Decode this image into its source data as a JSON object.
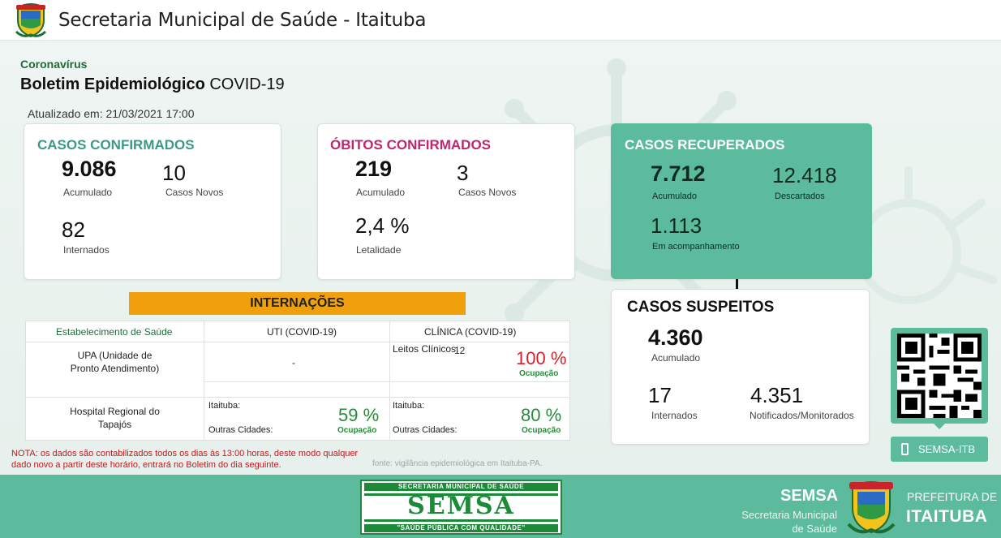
{
  "header": {
    "title": "Secretaria Municipal de Saúde - Itaituba",
    "crest_text": "ITAITUBA"
  },
  "bulletin": {
    "category": "Coronavírus",
    "title_bold": "Boletim Epidemiológico",
    "title_rest": " COVID-19",
    "updated": "Atualizado em: 21/03/2021 17:00"
  },
  "confirmed": {
    "title": "CASOS CONFIRMADOS",
    "accumulated": "9.086",
    "accumulated_label": "Acumulado",
    "new": "10",
    "new_label": "Casos Novos",
    "hospitalized": "82",
    "hospitalized_label": "Internados"
  },
  "deaths": {
    "title": "ÓBITOS CONFIRMADOS",
    "accumulated": "219",
    "accumulated_label": "Acumulado",
    "new": "3",
    "new_label": "Casos Novos",
    "lethality": "2,4 %",
    "lethality_label": "Letalidade"
  },
  "recovered": {
    "title": "CASOS RECUPERADOS",
    "accumulated": "7.712",
    "accumulated_label": "Acumulado",
    "discarded": "12.418",
    "discarded_label": "Descartados",
    "monitoring": "1.113",
    "monitoring_label": "Em acompanhamento"
  },
  "suspected": {
    "title": "CASOS SUSPEITOS",
    "accumulated": "4.360",
    "accumulated_label": "Acumulado",
    "hospitalized": "17",
    "hospitalized_label": "Internados",
    "notified": "4.351",
    "notified_label": "Notificados/Monitorados"
  },
  "internacoes": {
    "title": "INTERNAÇÕES",
    "columns": [
      "Estabelecimento de Saúde",
      "UTI (COVID-19)",
      "CLÍNICA (COVID-19)"
    ],
    "upa": {
      "name": "UPA (Unidade de\nPronto Atendimento)",
      "uti": "-",
      "clinic_label": "Leitos Clínicos:",
      "clinic_value": "12",
      "clinic_pct": "100 %",
      "clinic_occ": "Ocupação"
    },
    "hospital": {
      "name": "Hospital Regional do\nTapajós",
      "uti_city": "Itaituba:",
      "uti_other": "Outras Cidades:",
      "uti_pct": "59 %",
      "uti_occ": "Ocupação",
      "clinic_city": "Itaituba:",
      "clinic_other": "Outras Cidades:",
      "clinic_pct": "80 %",
      "clinic_occ": "Ocupação"
    }
  },
  "note": "NOTA: os dados são contabilizados todos os dias às 13:00 horas, deste modo qualquer dado novo a partir deste horário, entrará no Boletim do dia seguinte.",
  "source": "fonte: vigilância epidemiológica em Itaituba-PA.",
  "qr": {
    "button_label": "SEMSA-ITB"
  },
  "footer": {
    "logo_top": "SECRETARIA MUNICIPAL DE SAÚDE",
    "logo_word": "SEMSA",
    "logo_bottom": "\"SAÚDE PÚBLICA COM QUALIDADE\"",
    "semsa": "SEMSA",
    "secretaria_line1": "Secretaria Municipal",
    "secretaria_line2": "de Saúde",
    "prefeitura": "PREFEITURA DE",
    "city": "ITAITUBA"
  },
  "colors": {
    "teal": "#5bbb9c",
    "confirmed_title": "#3b9a86",
    "deaths_title": "#c0266e",
    "banner": "#f0a00d",
    "note_red": "#c2191f"
  }
}
